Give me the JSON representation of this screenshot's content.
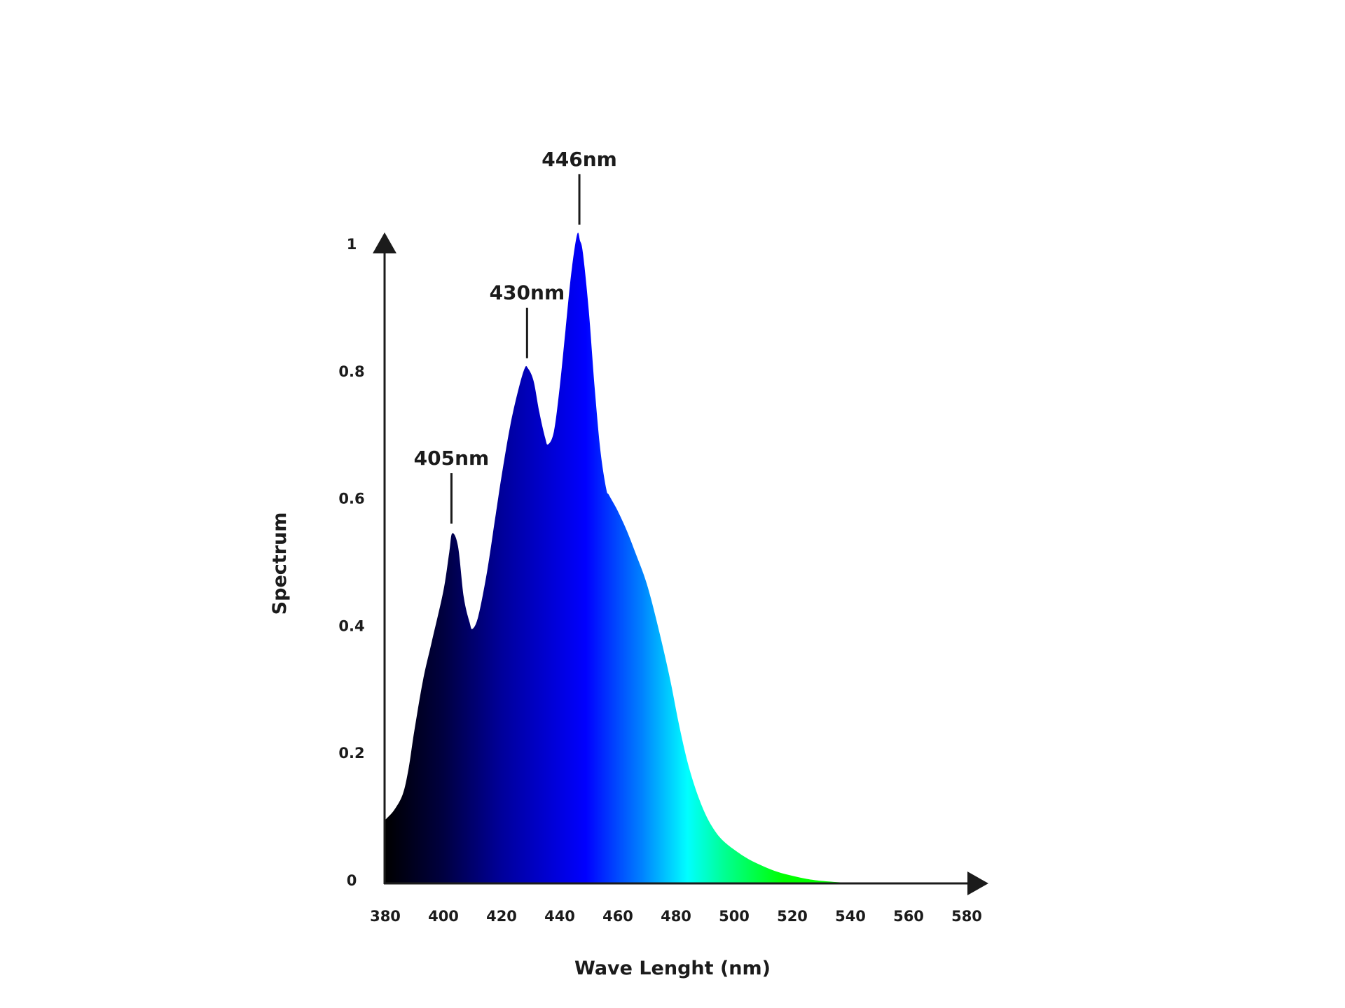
{
  "chart_data": {
    "type": "area",
    "title": "",
    "xlabel": "Wave Lenght (nm)",
    "ylabel": "Spectrum",
    "xlim": [
      380,
      580
    ],
    "ylim": [
      0,
      1
    ],
    "grid": false,
    "legend": null,
    "x_ticks": [
      380,
      400,
      420,
      440,
      460,
      480,
      500,
      520,
      540,
      560,
      580
    ],
    "y_ticks": [
      0,
      0.2,
      0.4,
      0.6,
      0.8,
      1
    ],
    "y_tick_labels": [
      "0",
      "0.2",
      "0.4",
      "0.6",
      "0.8",
      "1"
    ],
    "x_tick_labels": [
      "380",
      "400",
      "420",
      "440",
      "460",
      "480",
      "500",
      "520",
      "540",
      "560",
      "580"
    ],
    "series": [
      {
        "name": "Spectrum",
        "x": [
          380,
          383,
          386,
          388,
          390,
          393,
          396,
          400,
          402,
          403,
          405,
          407,
          409,
          410,
          412,
          415,
          418,
          420,
          423,
          426,
          428,
          429,
          431,
          433,
          435,
          436,
          438,
          440,
          442,
          444,
          446,
          447,
          448,
          450,
          452,
          454,
          456,
          457,
          460,
          463,
          466,
          470,
          474,
          478,
          481,
          484,
          487,
          490,
          493,
          496,
          500,
          505,
          510,
          515,
          520,
          525,
          530,
          537,
          545
        ],
        "values": [
          0.1,
          0.115,
          0.14,
          0.18,
          0.24,
          0.32,
          0.38,
          0.46,
          0.52,
          0.55,
          0.53,
          0.45,
          0.41,
          0.4,
          0.42,
          0.49,
          0.58,
          0.64,
          0.72,
          0.78,
          0.81,
          0.81,
          0.79,
          0.74,
          0.7,
          0.69,
          0.71,
          0.78,
          0.87,
          0.96,
          1.02,
          1.01,
          0.99,
          0.9,
          0.78,
          0.68,
          0.62,
          0.61,
          0.585,
          0.555,
          0.52,
          0.47,
          0.4,
          0.32,
          0.25,
          0.19,
          0.145,
          0.11,
          0.085,
          0.068,
          0.053,
          0.038,
          0.027,
          0.018,
          0.012,
          0.007,
          0.004,
          0.0015,
          0
        ]
      }
    ],
    "annotations": [
      {
        "label": "405nm",
        "x": 403,
        "y": 0.55
      },
      {
        "label": "430nm",
        "x": 429,
        "y": 0.81
      },
      {
        "label": "446nm",
        "x": 447,
        "y": 1.02
      }
    ],
    "fill_gradient": [
      {
        "nm": 380,
        "color": "#000000"
      },
      {
        "nm": 400,
        "color": "#000040"
      },
      {
        "nm": 420,
        "color": "#00009a"
      },
      {
        "nm": 449,
        "color": "#0000ff"
      },
      {
        "nm": 468,
        "color": "#0080ff"
      },
      {
        "nm": 484,
        "color": "#00ffff"
      },
      {
        "nm": 497,
        "color": "#00ff90"
      },
      {
        "nm": 517,
        "color": "#00ff00"
      },
      {
        "nm": 545,
        "color": "#00ff00"
      }
    ]
  },
  "colors": {
    "axis": "#1b1b1b",
    "text": "#1b1b1b",
    "background": "#ffffff"
  }
}
